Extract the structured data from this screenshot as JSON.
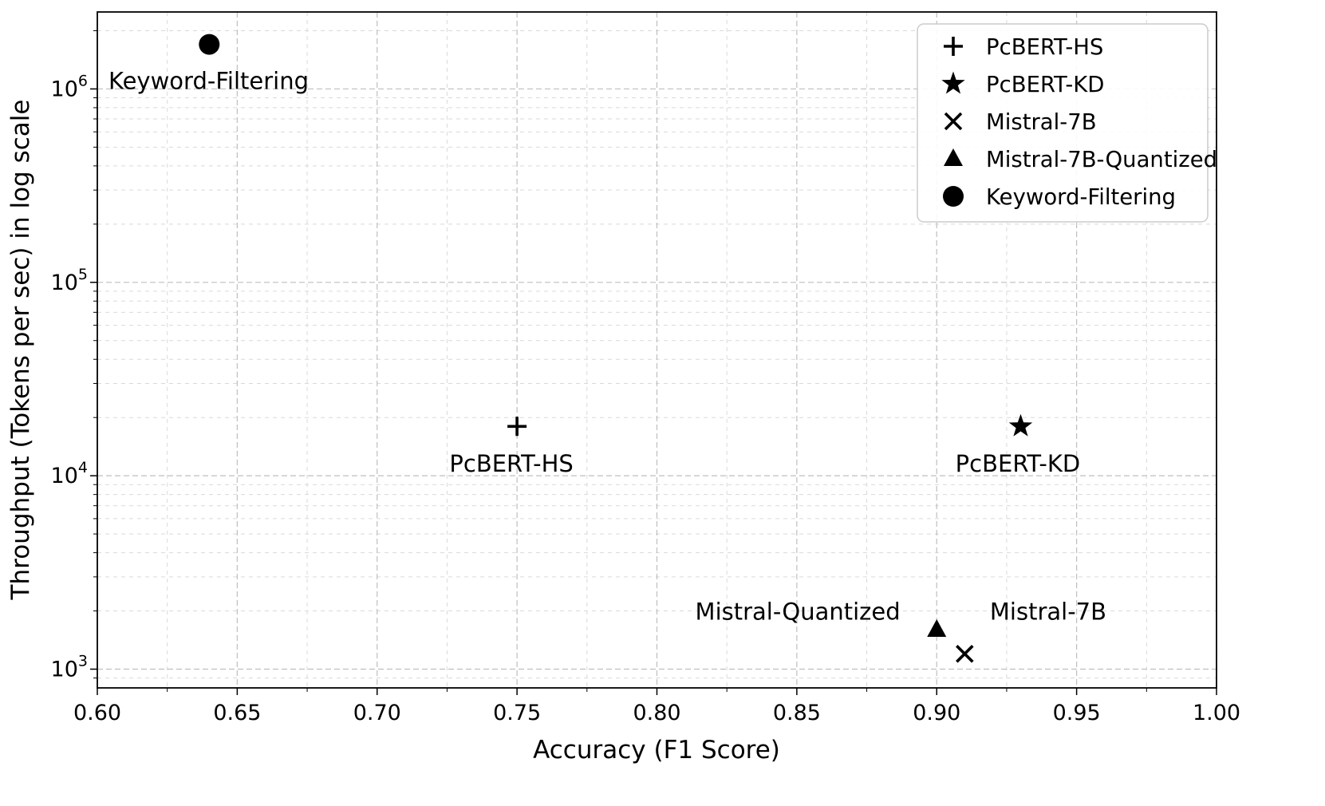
{
  "figure": {
    "background": "#ffffff",
    "marker_color": "#000000",
    "grid_major_color": "#bfbfbf",
    "grid_minor_color": "#d9d9d9"
  },
  "chart_data": {
    "type": "scatter",
    "title": "",
    "xlabel": "Accuracy (F1 Score)",
    "ylabel": "Throughput (Tokens per sec) in log scale",
    "xlim": [
      0.6,
      1.0
    ],
    "ylim": [
      800,
      2500000
    ],
    "yscale": "log",
    "grid": {
      "major": true,
      "minor": true,
      "style": "dashed"
    },
    "x_major_ticks": [
      0.6,
      0.65,
      0.7,
      0.75,
      0.8,
      0.85,
      0.9,
      0.95,
      1.0
    ],
    "x_tick_labels": [
      "0.60",
      "0.65",
      "0.70",
      "0.75",
      "0.80",
      "0.85",
      "0.90",
      "0.95",
      "1.00"
    ],
    "y_major_ticks": [
      1000,
      10000,
      100000,
      1000000
    ],
    "y_tick_exponents": [
      3,
      4,
      5,
      6
    ],
    "series": [
      {
        "name": "PcBERT-HS",
        "marker": "plus",
        "x": 0.75,
        "y": 18000
      },
      {
        "name": "PcBERT-KD",
        "marker": "star",
        "x": 0.93,
        "y": 18000
      },
      {
        "name": "Mistral-7B",
        "marker": "x",
        "x": 0.91,
        "y": 1200
      },
      {
        "name": "Mistral-7B-Quantized",
        "marker": "triangle",
        "x": 0.9,
        "y": 1600
      },
      {
        "name": "Keyword-Filtering",
        "marker": "circle",
        "x": 0.64,
        "y": 1700000
      }
    ],
    "annotations": [
      {
        "text": "Keyword-Filtering",
        "x": 0.604,
        "y": 1000000,
        "anchor": "start"
      },
      {
        "text": "PcBERT-HS",
        "x": 0.748,
        "y": 10500,
        "anchor": "middle"
      },
      {
        "text": "PcBERT-KD",
        "x": 0.929,
        "y": 10500,
        "anchor": "middle"
      },
      {
        "text": "Mistral-Quantized",
        "x": 0.887,
        "y": 1800,
        "anchor": "end"
      },
      {
        "text": "Mistral-7B",
        "x": 0.919,
        "y": 1800,
        "anchor": "start"
      }
    ],
    "legend": {
      "position": "upper right",
      "items": [
        {
          "label": "PcBERT-HS",
          "marker": "plus"
        },
        {
          "label": "PcBERT-KD",
          "marker": "star"
        },
        {
          "label": "Mistral-7B",
          "marker": "x"
        },
        {
          "label": "Mistral-7B-Quantized",
          "marker": "triangle"
        },
        {
          "label": "Keyword-Filtering",
          "marker": "circle"
        }
      ]
    }
  }
}
